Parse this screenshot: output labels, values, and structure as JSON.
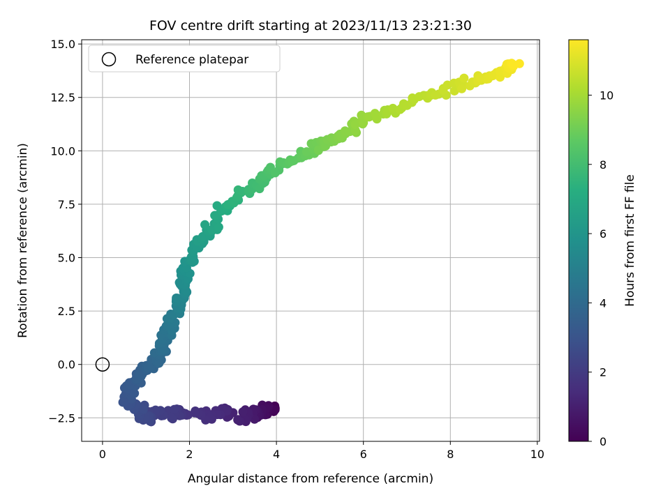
{
  "chart_data": {
    "type": "scatter",
    "title": "FOV centre drift starting at 2023/11/13 23:21:30",
    "xlabel": "Angular distance from reference (arcmin)",
    "ylabel": "Rotation from reference (arcmin)",
    "xlim": [
      -0.48,
      10.05
    ],
    "ylim": [
      -3.6,
      15.2
    ],
    "xticks": [
      0,
      2,
      4,
      6,
      8,
      10
    ],
    "yticks": [
      -2.5,
      0.0,
      2.5,
      5.0,
      7.5,
      10.0,
      12.5,
      15.0
    ],
    "xtick_labels": [
      "0",
      "2",
      "4",
      "6",
      "8",
      "10"
    ],
    "ytick_labels": [
      "−2.5",
      "0.0",
      "2.5",
      "5.0",
      "7.5",
      "10.0",
      "12.5",
      "15.0"
    ],
    "grid": true,
    "legend": {
      "location": "upper-left",
      "entries": [
        "Reference platepar"
      ]
    },
    "reference_point": {
      "x": 0.0,
      "y": 0.0,
      "label": "Reference platepar"
    },
    "colorbar": {
      "label": "Hours from first FF file",
      "colormap": "viridis",
      "range": [
        0,
        11.6
      ],
      "ticks": [
        0,
        2,
        4,
        6,
        8,
        10
      ],
      "tick_labels": [
        "0",
        "2",
        "4",
        "6",
        "8",
        "10"
      ]
    },
    "track": [
      {
        "x": 3.95,
        "y": -2.15,
        "c": 0.0
      },
      {
        "x": 3.8,
        "y": -2.1,
        "c": 0.3
      },
      {
        "x": 3.6,
        "y": -2.3,
        "c": 0.55
      },
      {
        "x": 3.4,
        "y": -2.3,
        "c": 0.8
      },
      {
        "x": 3.2,
        "y": -2.5,
        "c": 1.0
      },
      {
        "x": 2.75,
        "y": -2.1,
        "c": 1.3
      },
      {
        "x": 2.5,
        "y": -2.4,
        "c": 1.5
      },
      {
        "x": 1.8,
        "y": -2.4,
        "c": 1.8
      },
      {
        "x": 1.6,
        "y": -2.25,
        "c": 2.0
      },
      {
        "x": 1.2,
        "y": -2.3,
        "c": 2.2
      },
      {
        "x": 0.95,
        "y": -2.45,
        "c": 2.5
      },
      {
        "x": 0.8,
        "y": -2.0,
        "c": 2.7
      },
      {
        "x": 0.6,
        "y": -1.8,
        "c": 2.9
      },
      {
        "x": 0.55,
        "y": -1.3,
        "c": 3.1
      },
      {
        "x": 0.7,
        "y": -0.9,
        "c": 3.3
      },
      {
        "x": 0.9,
        "y": -0.4,
        "c": 3.5
      },
      {
        "x": 1.1,
        "y": -0.1,
        "c": 3.7
      },
      {
        "x": 1.3,
        "y": 0.3,
        "c": 3.9
      },
      {
        "x": 1.4,
        "y": 0.9,
        "c": 4.2
      },
      {
        "x": 1.5,
        "y": 1.6,
        "c": 4.5
      },
      {
        "x": 1.65,
        "y": 2.3,
        "c": 4.8
      },
      {
        "x": 1.8,
        "y": 3.0,
        "c": 5.2
      },
      {
        "x": 1.85,
        "y": 3.6,
        "c": 5.5
      },
      {
        "x": 1.95,
        "y": 4.3,
        "c": 5.8
      },
      {
        "x": 2.1,
        "y": 5.3,
        "c": 6.2
      },
      {
        "x": 2.4,
        "y": 6.1,
        "c": 6.6
      },
      {
        "x": 2.75,
        "y": 7.2,
        "c": 7.1
      },
      {
        "x": 3.1,
        "y": 7.8,
        "c": 7.5
      },
      {
        "x": 3.6,
        "y": 8.5,
        "c": 8.0
      },
      {
        "x": 4.0,
        "y": 9.2,
        "c": 8.4
      },
      {
        "x": 4.6,
        "y": 9.8,
        "c": 8.8
      },
      {
        "x": 5.1,
        "y": 10.3,
        "c": 9.2
      },
      {
        "x": 5.6,
        "y": 10.9,
        "c": 9.5
      },
      {
        "x": 6.2,
        "y": 11.6,
        "c": 9.9
      },
      {
        "x": 7.0,
        "y": 12.2,
        "c": 10.3
      },
      {
        "x": 7.8,
        "y": 12.8,
        "c": 10.6
      },
      {
        "x": 8.6,
        "y": 13.3,
        "c": 11.0
      },
      {
        "x": 9.2,
        "y": 13.7,
        "c": 11.3
      },
      {
        "x": 9.55,
        "y": 14.2,
        "c": 11.6
      }
    ]
  }
}
